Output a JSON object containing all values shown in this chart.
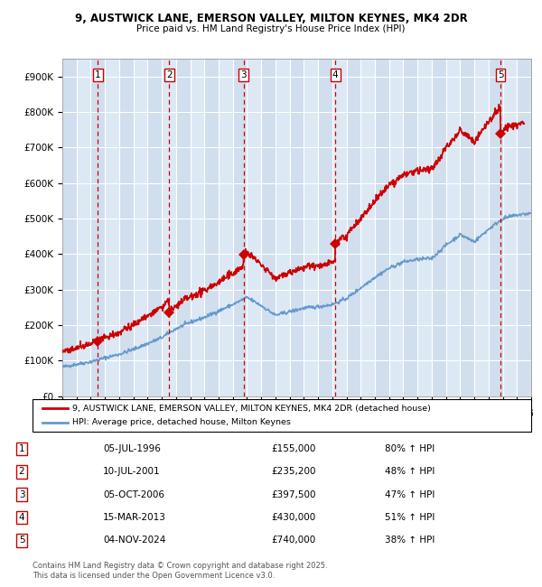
{
  "title_line1": "9, AUSTWICK LANE, EMERSON VALLEY, MILTON KEYNES, MK4 2DR",
  "title_line2": "Price paid vs. HM Land Registry's House Price Index (HPI)",
  "ylim": [
    0,
    950000
  ],
  "yticks": [
    0,
    100000,
    200000,
    300000,
    400000,
    500000,
    600000,
    700000,
    800000,
    900000
  ],
  "ytick_labels": [
    "£0",
    "£100K",
    "£200K",
    "£300K",
    "£400K",
    "£500K",
    "£600K",
    "£700K",
    "£800K",
    "£900K"
  ],
  "sale_dates": [
    1996.51,
    2001.52,
    2006.76,
    2013.21,
    2024.84
  ],
  "sale_prices": [
    155000,
    235200,
    397500,
    430000,
    740000
  ],
  "sale_labels": [
    "1",
    "2",
    "3",
    "4",
    "5"
  ],
  "vline_dates": [
    1996.51,
    2001.52,
    2006.76,
    2013.21,
    2024.84
  ],
  "hpi_line_color": "#6699cc",
  "price_line_color": "#cc0000",
  "vline_color": "#cc0000",
  "bg_color": "#dce9f5",
  "grid_color": "#ffffff",
  "legend_entries": [
    "9, AUSTWICK LANE, EMERSON VALLEY, MILTON KEYNES, MK4 2DR (detached house)",
    "HPI: Average price, detached house, Milton Keynes"
  ],
  "table_data": [
    [
      "1",
      "05-JUL-1996",
      "£155,000",
      "80% ↑ HPI"
    ],
    [
      "2",
      "10-JUL-2001",
      "£235,200",
      "48% ↑ HPI"
    ],
    [
      "3",
      "05-OCT-2006",
      "£397,500",
      "47% ↑ HPI"
    ],
    [
      "4",
      "15-MAR-2013",
      "£430,000",
      "51% ↑ HPI"
    ],
    [
      "5",
      "04-NOV-2024",
      "£740,000",
      "38% ↑ HPI"
    ]
  ],
  "footnote": "Contains HM Land Registry data © Crown copyright and database right 2025.\nThis data is licensed under the Open Government Licence v3.0.",
  "xmin": 1994,
  "xmax": 2027,
  "hpi_years_key": [
    1994,
    1995,
    1996,
    1997,
    1998,
    1999,
    2000,
    2001,
    2002,
    2003,
    2004,
    2005,
    2006,
    2007,
    2008,
    2009,
    2010,
    2011,
    2012,
    2013,
    2014,
    2015,
    2016,
    2017,
    2018,
    2019,
    2020,
    2021,
    2022,
    2023,
    2024,
    2025,
    2026,
    2027
  ],
  "hpi_vals_key": [
    82000,
    90000,
    97000,
    108000,
    118000,
    132000,
    148000,
    165000,
    190000,
    208000,
    222000,
    240000,
    258000,
    278000,
    255000,
    228000,
    238000,
    248000,
    252000,
    258000,
    275000,
    305000,
    335000,
    360000,
    378000,
    385000,
    388000,
    425000,
    455000,
    435000,
    470000,
    500000,
    510000,
    515000
  ]
}
